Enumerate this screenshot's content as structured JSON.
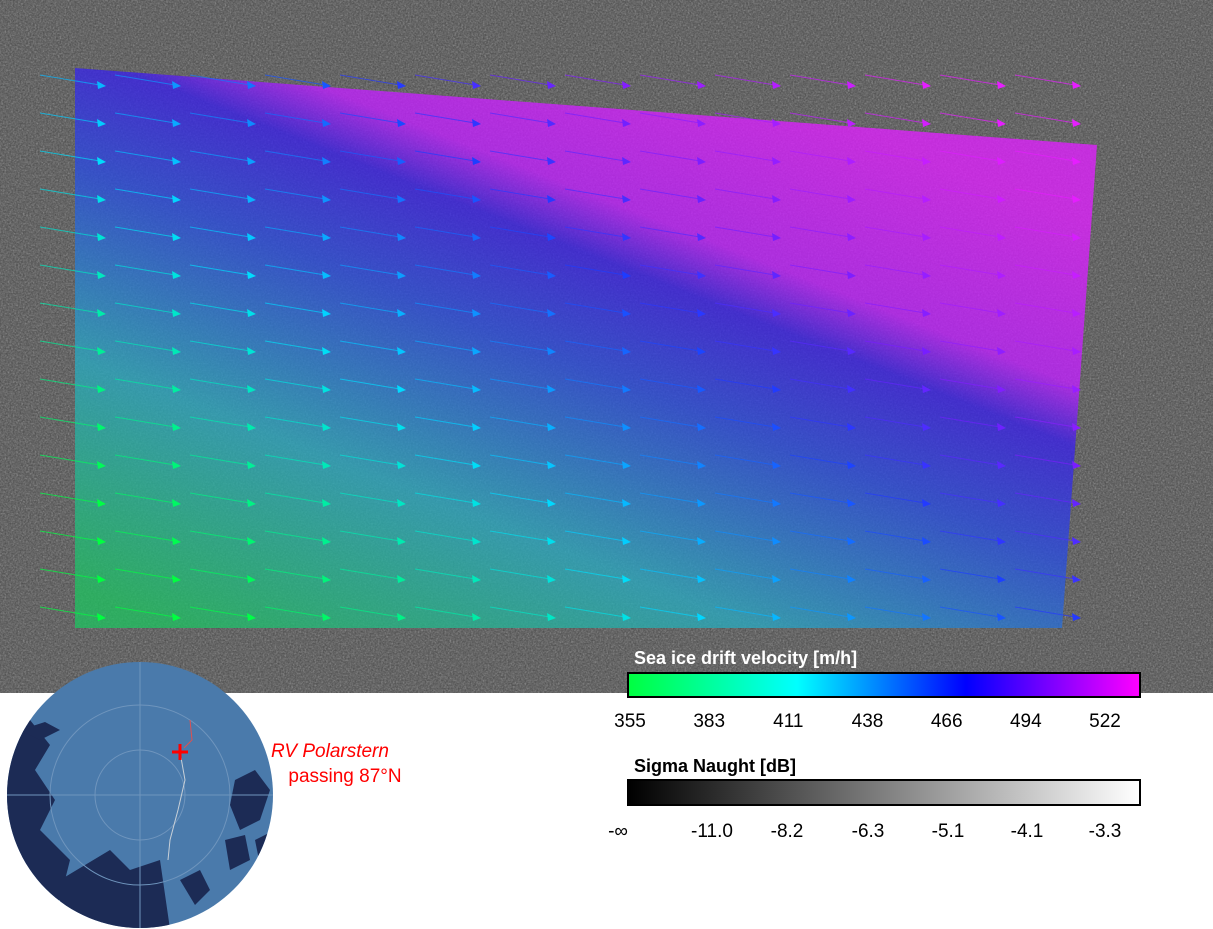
{
  "velocity_colorbar": {
    "title": "Sea ice drift velocity [m/h]",
    "ticks": [
      355,
      383,
      411,
      438,
      466,
      494,
      522
    ]
  },
  "sigma_colorbar": {
    "title": "Sigma Naught [dB]",
    "ticks": [
      "-∞",
      "-11.0",
      "-8.2",
      "-6.3",
      "-5.1",
      "-4.1",
      "-3.3"
    ]
  },
  "globe": {
    "label_line1": "RV Polarstern",
    "label_line2": "passing 87°N"
  }
}
